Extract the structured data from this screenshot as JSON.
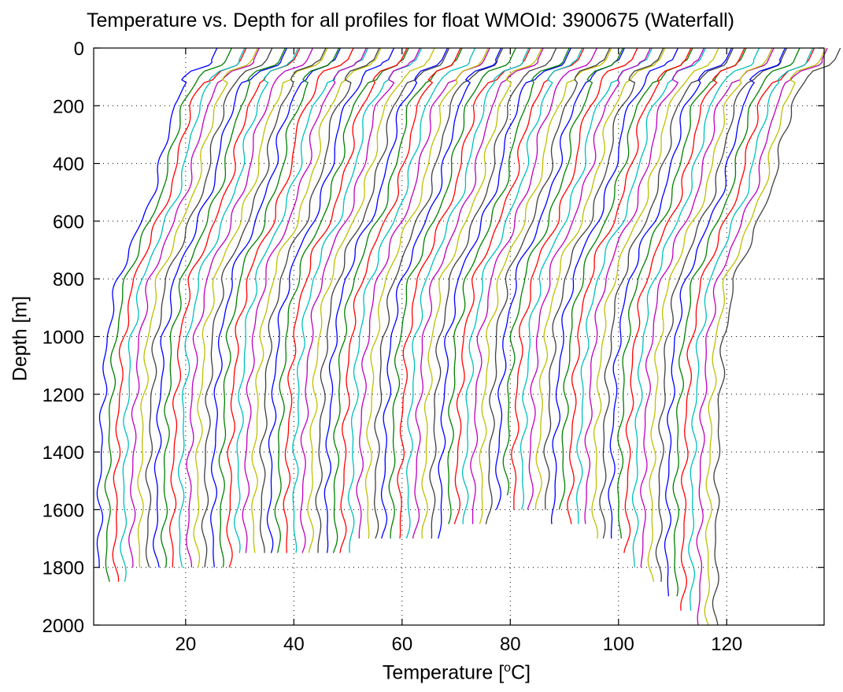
{
  "chart_data": {
    "type": "line",
    "title": "Temperature vs. Depth for all profiles for float WMOId: 3900675 (Waterfall)",
    "xlabel_prefix": "Temperature [",
    "xlabel_sup": "o",
    "xlabel_suffix": "C]",
    "ylabel": "Depth [m]",
    "xlim": [
      3,
      138
    ],
    "ylim": [
      0,
      2000
    ],
    "y_reversed": true,
    "grid": true,
    "x_ticks": [
      20,
      40,
      60,
      80,
      100,
      120
    ],
    "y_ticks": [
      0,
      200,
      400,
      600,
      800,
      1000,
      1200,
      1400,
      1600,
      1800,
      2000
    ],
    "series_colors": [
      "#0000ff",
      "#008000",
      "#ff0000",
      "#00bfbf",
      "#bf00bf",
      "#bfbf00",
      "#404040"
    ],
    "profiles_count": 77,
    "profile_offset_step": 1.5,
    "first_profile": {
      "depth": [
        0,
        40,
        60,
        80,
        100,
        150,
        200,
        300,
        400,
        500,
        600,
        700,
        800,
        900,
        1000,
        1200,
        1400,
        1600,
        1800
      ],
      "temperature": [
        27,
        26,
        25,
        22,
        21,
        19.5,
        18,
        16.5,
        15.5,
        14,
        12,
        9.5,
        7.5,
        6.5,
        5.5,
        4.8,
        4.3,
        4.1,
        4.0
      ]
    },
    "max_depths": [
      1800,
      1850,
      1850,
      1850,
      1800,
      1800,
      1800,
      1800,
      1800,
      1800,
      1800,
      1800,
      1800,
      1800,
      1800,
      1800,
      1800,
      1750,
      1750,
      1750,
      1750,
      1750,
      1750,
      1750,
      1750,
      1750,
      1750,
      1750,
      1750,
      1750,
      1750,
      1750,
      1700,
      1700,
      1700,
      1700,
      1700,
      1700,
      1700,
      1700,
      1700,
      1700,
      1700,
      1650,
      1650,
      1650,
      1650,
      1650,
      1650,
      1600,
      1550,
      1600,
      1600,
      1600,
      1600,
      1600,
      1650,
      1600,
      1650,
      1650,
      1650,
      1700,
      1700,
      1700,
      1700,
      1750,
      1800,
      1800,
      1850,
      1850,
      1900,
      1900,
      1950,
      1950,
      2000,
      2000,
      2000
    ]
  }
}
